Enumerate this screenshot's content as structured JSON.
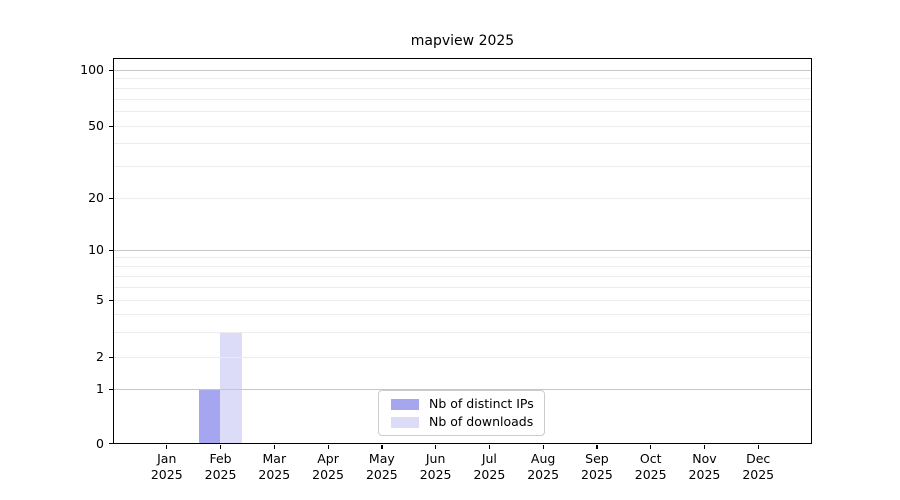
{
  "figure": {
    "title": "mapview 2025"
  },
  "chart_data": {
    "type": "bar",
    "title": "mapview 2025",
    "categories": [
      "Jan",
      "Feb",
      "Mar",
      "Apr",
      "May",
      "Jun",
      "Jul",
      "Aug",
      "Sep",
      "Oct",
      "Nov",
      "Dec"
    ],
    "tick_year": "2025",
    "series": [
      {
        "name": "Nb of distinct IPs",
        "color": "#a5a5f0",
        "values": [
          0,
          1,
          0,
          0,
          0,
          0,
          0,
          0,
          0,
          0,
          0,
          0
        ]
      },
      {
        "name": "Nb of downloads",
        "color": "#dcdcf8",
        "values": [
          0,
          3,
          0,
          0,
          0,
          0,
          0,
          0,
          0,
          0,
          0,
          0
        ]
      }
    ],
    "xlabel": "",
    "ylabel": "",
    "y_axis": {
      "scale": "log-like",
      "labeled_ticks": [
        0,
        1,
        2,
        5,
        10,
        20,
        50,
        100
      ],
      "decade_grid": [
        1,
        10,
        100
      ],
      "level_grid": [
        2,
        5,
        20,
        50
      ],
      "minor_grid": [
        3,
        4,
        6,
        7,
        8,
        9,
        30,
        40,
        60,
        70,
        80,
        90
      ],
      "ylim_top_label": 100
    },
    "grid": true,
    "legend": {
      "position": "bottom-center",
      "entries": [
        "Nb of distinct IPs",
        "Nb of downloads"
      ]
    }
  },
  "colors": {
    "background": "#ffffff",
    "bar_distinct_ips": "#a5a5f0",
    "bar_downloads": "#dcdcf8",
    "grid_major": "#c6c6c6",
    "grid_minor": "#ececec",
    "axis": "#000000",
    "text": "#000000",
    "legend_border": "#cccccc"
  }
}
